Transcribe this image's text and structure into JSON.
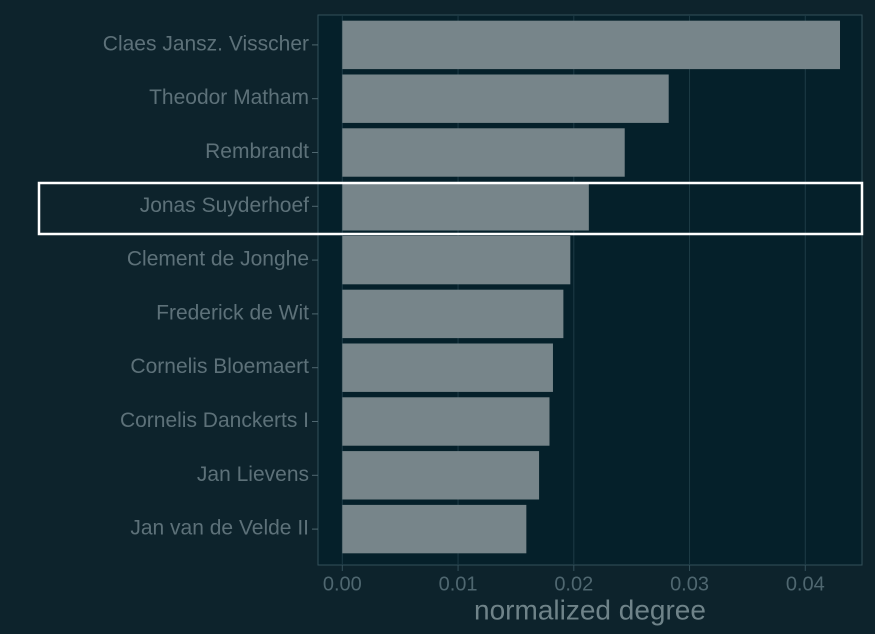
{
  "chart_data": {
    "type": "bar",
    "orientation": "horizontal",
    "x_label": "normalized degree",
    "categories": [
      "Claes Jansz. Visscher",
      "Theodor Matham",
      "Rembrandt",
      "Jonas Suyderhoef",
      "Clement de Jonghe",
      "Frederick de Wit",
      "Cornelis Bloemaert",
      "Cornelis Danckerts I",
      "Jan Lievens",
      "Jan van de Velde II"
    ],
    "values": [
      0.043,
      0.0282,
      0.0244,
      0.0213,
      0.0197,
      0.0191,
      0.0182,
      0.0179,
      0.017,
      0.0159
    ],
    "color": "#77858a",
    "xlim": [
      -0.0021,
      0.0449
    ],
    "xticks": [
      {
        "value": 0,
        "label": "0.00"
      },
      0.01,
      0.02,
      0.03,
      0.04
    ],
    "grid": true
  }
}
